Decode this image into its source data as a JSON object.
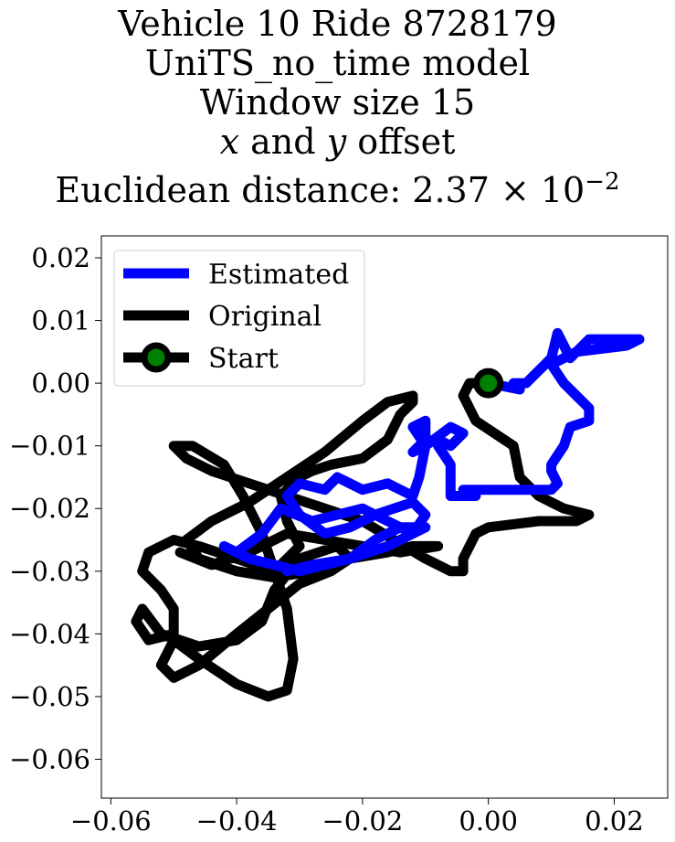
{
  "chart_data": {
    "type": "line",
    "title_lines": [
      "Vehicle 10 Ride 8728179",
      "UniTS_no_time model",
      "Window size 15",
      "x and y offset",
      "Euclidean distance: 2.37 × 10⁻²"
    ],
    "title_offset_parts": {
      "x": "x",
      "and": " and ",
      "y": "y",
      "offset": " offset"
    },
    "title_distance_parts": {
      "prefix": "Euclidean distance: 2.37 × 10",
      "exponent": "−2"
    },
    "xlabel": "",
    "ylabel": "",
    "xlim": [
      -0.0615,
      0.0285
    ],
    "ylim": [
      -0.0662,
      0.0235
    ],
    "xticks": [
      -0.06,
      -0.04,
      -0.02,
      0.0,
      0.02
    ],
    "xtick_labels": [
      "−0.06",
      "−0.04",
      "−0.02",
      "0.00",
      "0.02"
    ],
    "yticks": [
      0.02,
      0.01,
      0.0,
      -0.01,
      -0.02,
      -0.03,
      -0.04,
      -0.05,
      -0.06
    ],
    "ytick_labels": [
      "0.02",
      "0.01",
      "0.00",
      "−0.01",
      "−0.02",
      "−0.03",
      "−0.04",
      "−0.05",
      "−0.06"
    ],
    "grid": false,
    "legend_position": "top-left",
    "colors": {
      "estimated": "#0000ff",
      "original": "#000000",
      "start_marker": "#008000"
    },
    "series": [
      {
        "name": "Estimated",
        "color": "#0000ff",
        "x": [
          0.0,
          0.005,
          0.004,
          0.006,
          0.01,
          0.011,
          0.012,
          0.013,
          0.016,
          0.02,
          0.024,
          0.022,
          0.014,
          0.01,
          0.012,
          0.014,
          0.016,
          0.016,
          0.013,
          0.012,
          0.01,
          0.01,
          0.011,
          0.01,
          0.006,
          0.0,
          -0.004,
          -0.002,
          -0.006,
          -0.006,
          -0.008,
          -0.008,
          -0.006,
          -0.004,
          -0.006,
          -0.01,
          -0.012,
          -0.01,
          -0.01,
          -0.012,
          -0.01,
          -0.011,
          -0.012,
          -0.016,
          -0.02,
          -0.024,
          -0.026,
          -0.03,
          -0.032,
          -0.03,
          -0.026,
          -0.022,
          -0.018,
          -0.015,
          -0.012,
          -0.01,
          -0.012,
          -0.016,
          -0.02,
          -0.024,
          -0.028,
          -0.033,
          -0.036,
          -0.04,
          -0.042,
          -0.038,
          -0.034,
          -0.03,
          -0.026,
          -0.022,
          -0.018,
          -0.014,
          -0.01,
          -0.016,
          -0.022,
          -0.028,
          -0.032
        ],
        "y": [
          0.0,
          -0.001,
          0.0,
          0.0,
          0.004,
          0.008,
          0.006,
          0.004,
          0.007,
          0.007,
          0.007,
          0.006,
          0.005,
          0.003,
          0.0,
          -0.002,
          -0.004,
          -0.006,
          -0.007,
          -0.01,
          -0.013,
          -0.014,
          -0.016,
          -0.017,
          -0.017,
          -0.017,
          -0.017,
          -0.018,
          -0.018,
          -0.013,
          -0.01,
          -0.009,
          -0.01,
          -0.008,
          -0.007,
          -0.01,
          -0.011,
          -0.009,
          -0.006,
          -0.007,
          -0.01,
          -0.015,
          -0.018,
          -0.016,
          -0.017,
          -0.015,
          -0.017,
          -0.016,
          -0.018,
          -0.021,
          -0.024,
          -0.023,
          -0.021,
          -0.02,
          -0.019,
          -0.021,
          -0.024,
          -0.022,
          -0.02,
          -0.021,
          -0.022,
          -0.02,
          -0.024,
          -0.027,
          -0.026,
          -0.028,
          -0.029,
          -0.03,
          -0.029,
          -0.028,
          -0.025,
          -0.023,
          -0.023,
          -0.026,
          -0.028,
          -0.029,
          -0.03
        ]
      },
      {
        "name": "Original",
        "color": "#000000",
        "x": [
          0.0,
          -0.003,
          -0.004,
          -0.002,
          0.004,
          0.005,
          0.008,
          0.01,
          0.012,
          0.016,
          0.014,
          0.008,
          0.0,
          -0.002,
          -0.004,
          -0.004,
          -0.006,
          -0.01,
          -0.015,
          -0.02,
          -0.026,
          -0.032,
          -0.038,
          -0.044,
          -0.048,
          -0.05,
          -0.047,
          -0.042,
          -0.039,
          -0.036,
          -0.034,
          -0.032,
          -0.031,
          -0.032,
          -0.035,
          -0.04,
          -0.046,
          -0.05,
          -0.052,
          -0.05,
          -0.046,
          -0.04,
          -0.035,
          -0.03,
          -0.025,
          -0.022,
          -0.024,
          -0.03,
          -0.034,
          -0.036,
          -0.04,
          -0.046,
          -0.052,
          -0.055,
          -0.056,
          -0.054,
          -0.05,
          -0.05,
          -0.052,
          -0.055,
          -0.054,
          -0.05,
          -0.046,
          -0.04,
          -0.034,
          -0.03,
          -0.032,
          -0.033,
          -0.03,
          -0.028,
          -0.025,
          -0.02,
          -0.016,
          -0.014,
          -0.012,
          -0.012,
          -0.016,
          -0.02,
          -0.026,
          -0.032,
          -0.038,
          -0.044,
          -0.048,
          -0.046,
          -0.04,
          -0.034,
          -0.028,
          -0.022,
          -0.016,
          -0.012,
          -0.008,
          -0.014,
          -0.02,
          -0.026,
          -0.032,
          -0.038,
          -0.044,
          -0.049
        ],
        "y": [
          0.0,
          0.0,
          -0.002,
          -0.006,
          -0.01,
          -0.015,
          -0.018,
          -0.019,
          -0.02,
          -0.021,
          -0.022,
          -0.022,
          -0.023,
          -0.024,
          -0.028,
          -0.03,
          -0.03,
          -0.028,
          -0.025,
          -0.022,
          -0.02,
          -0.018,
          -0.016,
          -0.014,
          -0.012,
          -0.01,
          -0.01,
          -0.013,
          -0.018,
          -0.024,
          -0.03,
          -0.036,
          -0.044,
          -0.049,
          -0.05,
          -0.048,
          -0.044,
          -0.041,
          -0.045,
          -0.047,
          -0.045,
          -0.04,
          -0.036,
          -0.032,
          -0.03,
          -0.028,
          -0.026,
          -0.028,
          -0.033,
          -0.038,
          -0.041,
          -0.042,
          -0.04,
          -0.036,
          -0.038,
          -0.041,
          -0.04,
          -0.036,
          -0.033,
          -0.03,
          -0.027,
          -0.025,
          -0.026,
          -0.028,
          -0.03,
          -0.026,
          -0.022,
          -0.018,
          -0.015,
          -0.014,
          -0.013,
          -0.012,
          -0.009,
          -0.005,
          -0.003,
          -0.002,
          -0.003,
          -0.006,
          -0.011,
          -0.015,
          -0.019,
          -0.022,
          -0.025,
          -0.028,
          -0.03,
          -0.031,
          -0.03,
          -0.028,
          -0.027,
          -0.026,
          -0.026,
          -0.027,
          -0.026,
          -0.025,
          -0.024,
          -0.027,
          -0.029,
          -0.027
        ]
      }
    ],
    "start_point": {
      "name": "Start",
      "x": 0.0,
      "y": 0.0
    },
    "legend": [
      {
        "label": "Estimated",
        "color": "#0000ff",
        "kind": "line"
      },
      {
        "label": "Original",
        "color": "#000000",
        "kind": "line"
      },
      {
        "label": "Start",
        "color": "#000000",
        "kind": "marker",
        "marker_face": "#008000"
      }
    ]
  }
}
